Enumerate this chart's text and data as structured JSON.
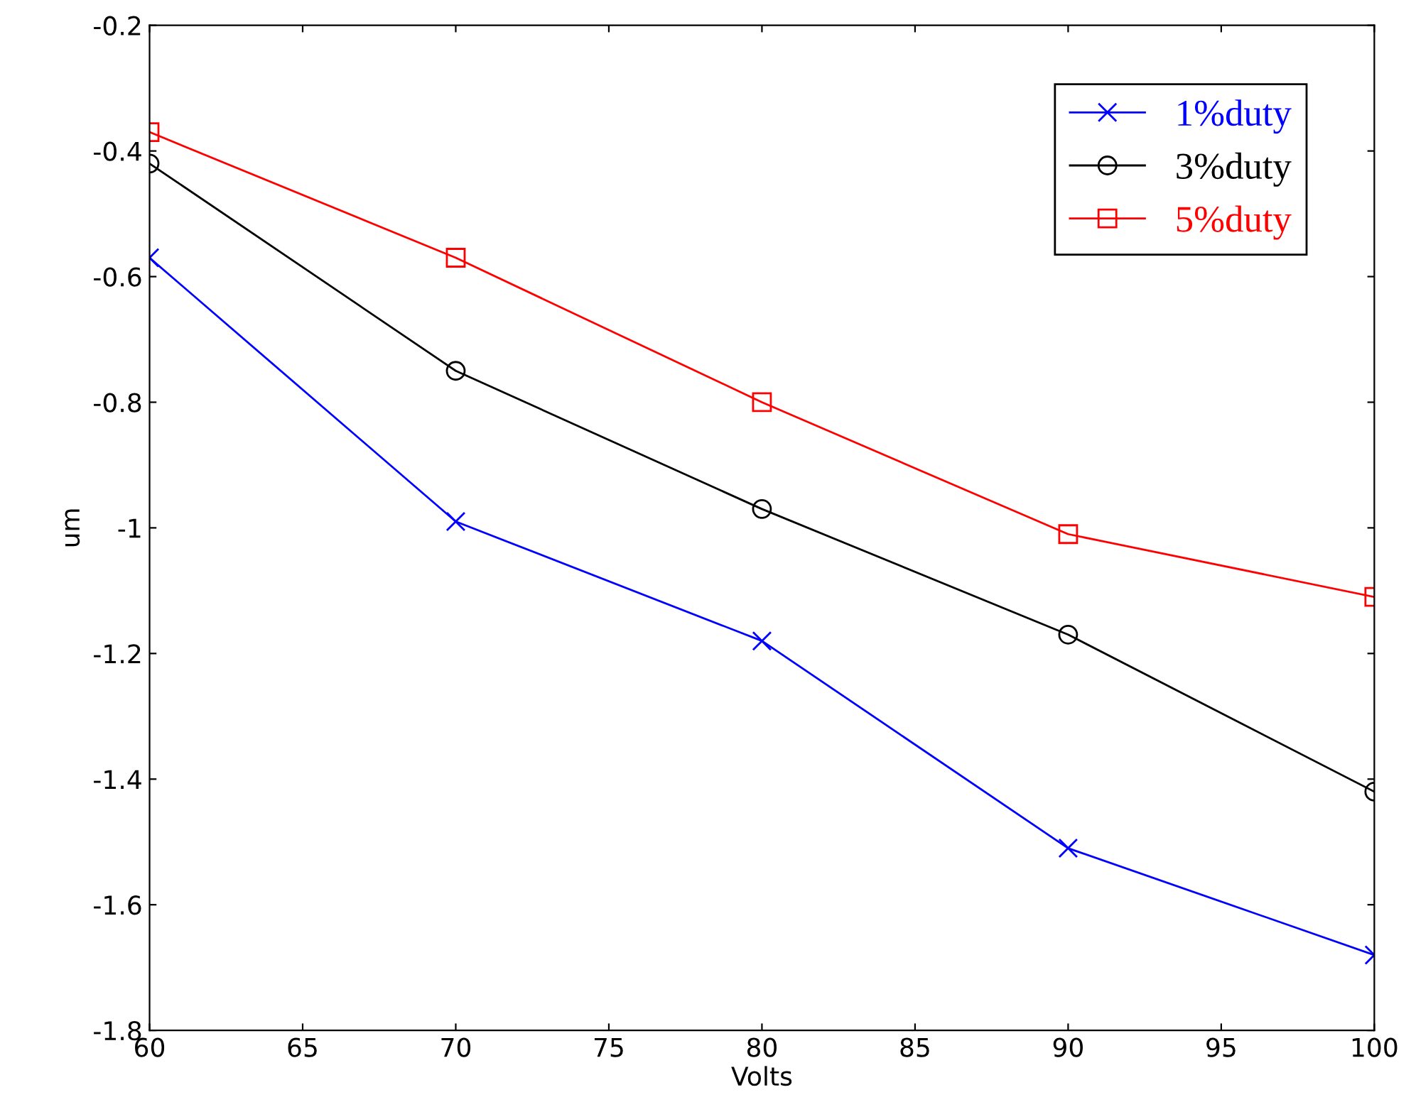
{
  "chart_data": {
    "type": "line",
    "xlabel": "Volts",
    "ylabel": "um",
    "x": [
      60,
      70,
      80,
      90,
      100
    ],
    "xlim": [
      60,
      100
    ],
    "xticks": [
      60,
      65,
      70,
      75,
      80,
      85,
      90,
      95,
      100
    ],
    "ylim": [
      -1.8,
      -0.2
    ],
    "yticks": [
      -1.8,
      -1.6,
      -1.4,
      -1.2,
      -1,
      -0.8,
      -0.6,
      -0.4,
      -0.2
    ],
    "grid": false,
    "legend": "top right",
    "series": [
      {
        "name": "1%duty",
        "color": "#0000ff",
        "marker": "cross",
        "values": [
          -0.57,
          -0.99,
          -1.18,
          -1.51,
          -1.68
        ]
      },
      {
        "name": "3%duty",
        "color": "#000000",
        "marker": "circle",
        "values": [
          -0.42,
          -0.75,
          -0.97,
          -1.17,
          -1.42
        ]
      },
      {
        "name": "5%duty",
        "color": "#ff0000",
        "marker": "square",
        "values": [
          -0.37,
          -0.57,
          -0.8,
          -1.01,
          -1.11
        ]
      }
    ]
  }
}
